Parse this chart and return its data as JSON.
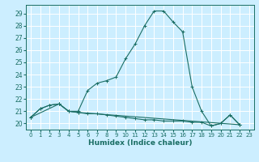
{
  "xlabel": "Humidex (Indice chaleur)",
  "bg_color": "#cceeff",
  "grid_color": "#ffffff",
  "line_color": "#1a6e64",
  "xlim": [
    -0.5,
    23.5
  ],
  "ylim": [
    19.5,
    29.7
  ],
  "xticks": [
    0,
    1,
    2,
    3,
    4,
    5,
    6,
    7,
    8,
    9,
    10,
    11,
    12,
    13,
    14,
    15,
    16,
    17,
    18,
    19,
    20,
    21,
    22,
    23
  ],
  "yticks": [
    20,
    21,
    22,
    23,
    24,
    25,
    26,
    27,
    28,
    29
  ],
  "series1": [
    [
      0,
      20.5
    ],
    [
      1,
      21.2
    ],
    [
      2,
      21.5
    ],
    [
      3,
      21.6
    ],
    [
      4,
      21.0
    ],
    [
      5,
      21.0
    ],
    [
      6,
      22.7
    ],
    [
      7,
      23.3
    ],
    [
      8,
      23.5
    ],
    [
      9,
      23.8
    ],
    [
      10,
      25.3
    ],
    [
      11,
      26.5
    ],
    [
      12,
      28.0
    ],
    [
      13,
      29.2
    ],
    [
      14,
      29.2
    ],
    [
      15,
      28.3
    ],
    [
      16,
      27.5
    ],
    [
      17,
      23.0
    ],
    [
      18,
      21.0
    ],
    [
      19,
      19.8
    ],
    [
      20,
      20.0
    ],
    [
      21,
      20.7
    ],
    [
      22,
      19.9
    ]
  ],
  "series2": [
    [
      0,
      20.5
    ],
    [
      1,
      21.2
    ],
    [
      2,
      21.5
    ],
    [
      3,
      21.6
    ],
    [
      4,
      21.0
    ],
    [
      5,
      20.9
    ],
    [
      6,
      20.8
    ],
    [
      7,
      20.8
    ],
    [
      8,
      20.7
    ],
    [
      9,
      20.6
    ],
    [
      10,
      20.5
    ],
    [
      11,
      20.4
    ],
    [
      12,
      20.3
    ],
    [
      13,
      20.3
    ],
    [
      14,
      20.2
    ],
    [
      15,
      20.2
    ],
    [
      16,
      20.2
    ],
    [
      17,
      20.1
    ],
    [
      18,
      20.1
    ],
    [
      19,
      19.8
    ],
    [
      20,
      20.0
    ],
    [
      21,
      20.7
    ],
    [
      22,
      19.9
    ]
  ],
  "series3": [
    [
      0,
      20.5
    ],
    [
      3,
      21.6
    ],
    [
      4,
      21.0
    ],
    [
      5,
      20.9
    ],
    [
      22,
      19.9
    ]
  ],
  "marker": "+",
  "marker_size": 3,
  "line_width": 0.8
}
